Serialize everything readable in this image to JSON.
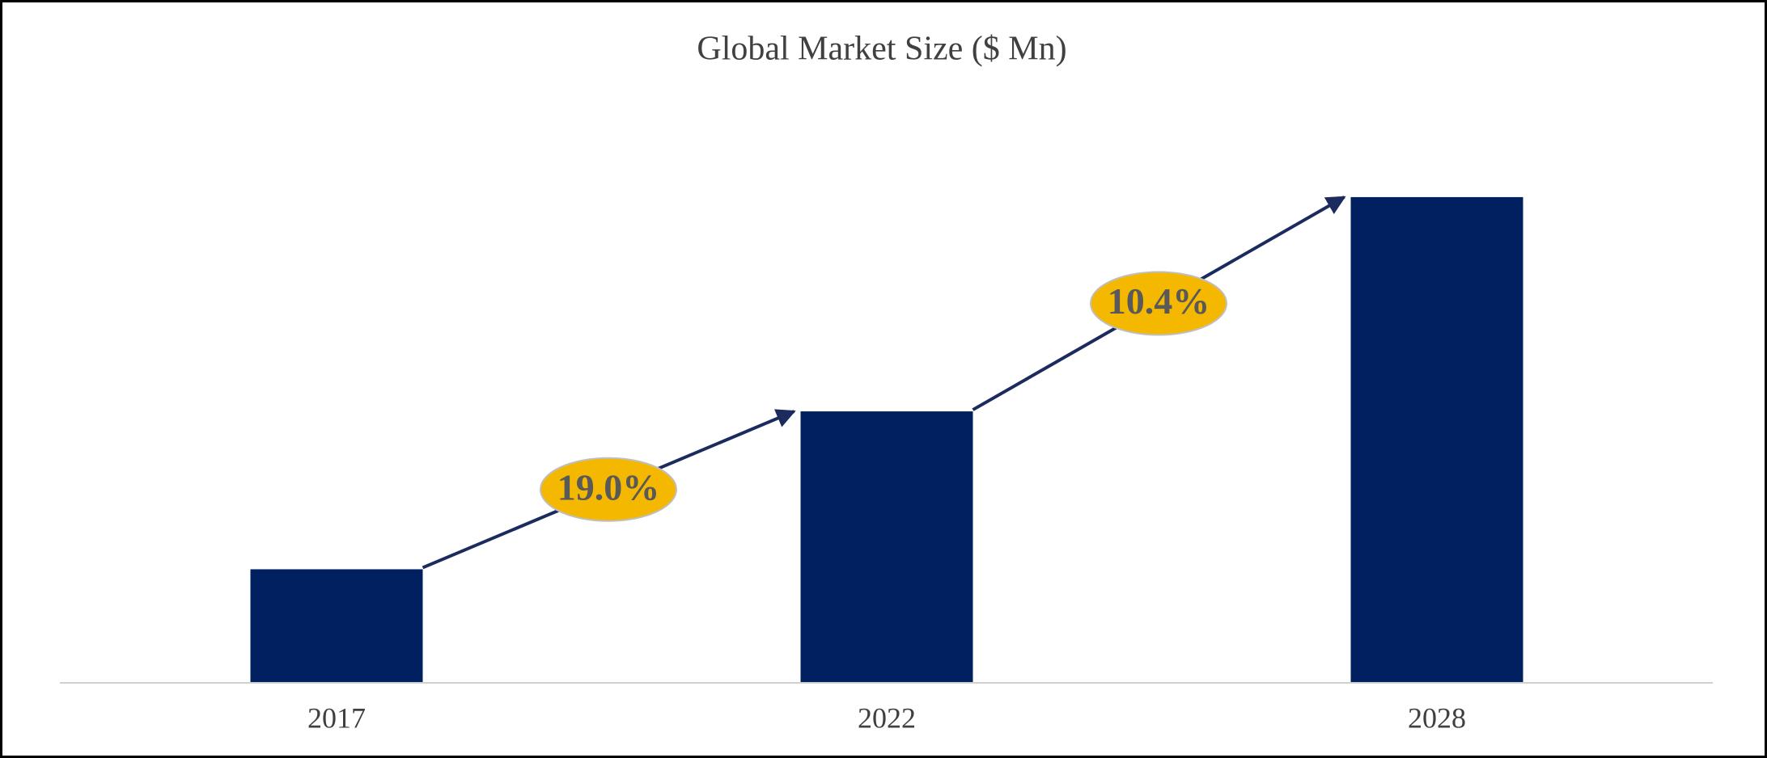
{
  "chart_data": {
    "type": "bar",
    "title": "Global Market Size ($ Mn)",
    "categories": [
      "2017",
      "2022",
      "2028"
    ],
    "values": [
      10,
      24,
      43
    ],
    "color": "#002060",
    "ylim": [
      0,
      45
    ],
    "annotations": [
      "19.0%",
      "10.4%"
    ]
  }
}
